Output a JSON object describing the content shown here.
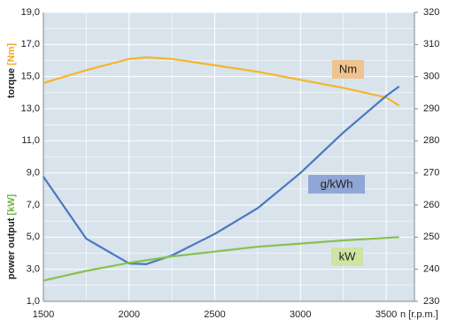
{
  "chart_data": {
    "type": "line",
    "y_label": "torque",
    "y_label_unit": "[Nm]",
    "y_label_2": "power output",
    "y_label_2_unit": "[kW]",
    "x_label": "n [r.p.m.]",
    "xlim": [
      1500,
      3665
    ],
    "xticks": [
      1500,
      2000,
      2500,
      3000,
      3500
    ],
    "ylim": [
      1.0,
      19.0
    ],
    "yticks": [
      {
        "value": 1.0,
        "label": "1,0"
      },
      {
        "value": 3.0,
        "label": "3,0"
      },
      {
        "value": 5.0,
        "label": "5,0"
      },
      {
        "value": 7.0,
        "label": "7,0"
      },
      {
        "value": 9.0,
        "label": "9,0"
      },
      {
        "value": 11.0,
        "label": "11,0"
      },
      {
        "value": 13.0,
        "label": "13,0"
      },
      {
        "value": 15.0,
        "label": "15,0"
      },
      {
        "value": 17.0,
        "label": "17,0"
      },
      {
        "value": 19.0,
        "label": "19,0"
      }
    ],
    "y2lim": [
      230,
      320
    ],
    "y2ticks": [
      230,
      240,
      250,
      260,
      270,
      280,
      290,
      300,
      310,
      320
    ],
    "grid": true,
    "series": [
      {
        "name": "Nm",
        "color": "#f5b52e",
        "label_bg": "#f0c38e",
        "x": [
          1500,
          1750,
          2000,
          2100,
          2250,
          2500,
          2750,
          3000,
          3250,
          3500,
          3575
        ],
        "values": [
          14.6,
          15.4,
          16.1,
          16.2,
          16.1,
          15.7,
          15.3,
          14.8,
          14.3,
          13.7,
          13.2
        ]
      },
      {
        "name": "g/kWh",
        "color": "#4a78c2",
        "label_bg": "#8fa6d6",
        "axis": "y2",
        "x": [
          1500,
          1750,
          2000,
          2100,
          2250,
          2500,
          2750,
          3000,
          3250,
          3500,
          3575
        ],
        "values": [
          268.8,
          249.5,
          241.8,
          241.6,
          244.3,
          251,
          259,
          270,
          282.6,
          294,
          296.9
        ]
      },
      {
        "name": "kW",
        "color": "#86c24e",
        "label_bg": "#cfe3a2",
        "x": [
          1500,
          1750,
          2000,
          2250,
          2500,
          2750,
          3000,
          3250,
          3575
        ],
        "values": [
          2.3,
          2.9,
          3.4,
          3.8,
          4.1,
          4.4,
          4.6,
          4.8,
          5.0
        ]
      }
    ]
  }
}
